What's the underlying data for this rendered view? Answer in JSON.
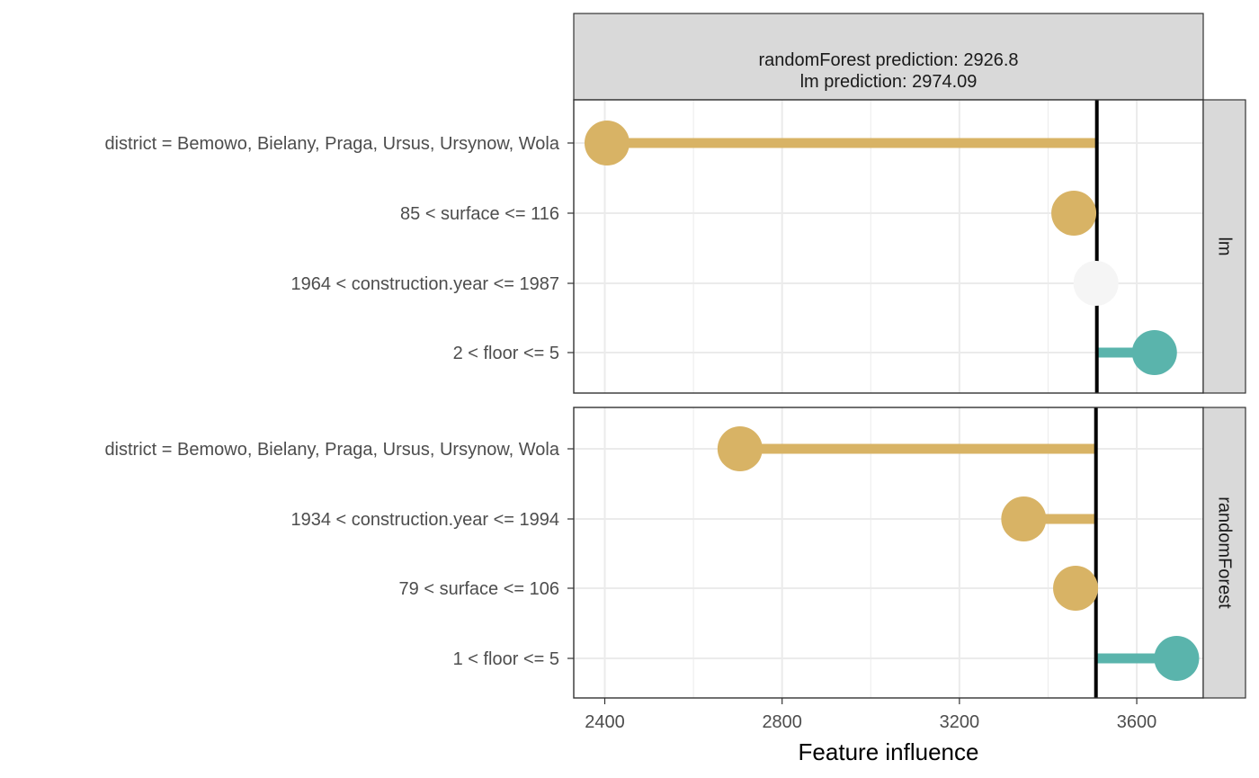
{
  "chart_data": {
    "type": "bar",
    "header": {
      "line1": "randomForest prediction:  2926.8",
      "line2": "lm prediction:  2974.09"
    },
    "xlabel": "Feature influence",
    "x_ticks": [
      2400,
      2800,
      3200,
      3600
    ],
    "x_tick_labels": [
      "2400",
      "2800",
      "3200",
      "3600"
    ],
    "xlim": [
      2330,
      3750
    ],
    "grid": true,
    "colors": {
      "negative": "#D8B365",
      "positive": "#5AB4AC",
      "neutral": "#F5F5F5",
      "baseline": "#000000",
      "strip_fill": "#D9D9D9",
      "grid": "#EBEBEB"
    },
    "panels": [
      {
        "name": "lm",
        "baseline": 3510,
        "features": [
          {
            "label": "district = Bemowo, Bielany, Praga, Ursus, Ursynow, Wola",
            "value": 2405,
            "sign": "negative"
          },
          {
            "label": "85 < surface <= 116",
            "value": 3458,
            "sign": "negative"
          },
          {
            "label": "1964 < construction.year <= 1987",
            "value": 3508,
            "sign": "neutral"
          },
          {
            "label": "2 < floor <= 5",
            "value": 3640,
            "sign": "positive"
          }
        ]
      },
      {
        "name": "randomForest",
        "baseline": 3508,
        "features": [
          {
            "label": "district = Bemowo, Bielany, Praga, Ursus, Ursynow, Wola",
            "value": 2705,
            "sign": "negative"
          },
          {
            "label": "1934 < construction.year <= 1994",
            "value": 3345,
            "sign": "negative"
          },
          {
            "label": "79 < surface <= 106",
            "value": 3462,
            "sign": "negative"
          },
          {
            "label": "1 < floor <= 5",
            "value": 3690,
            "sign": "positive"
          }
        ]
      }
    ]
  }
}
